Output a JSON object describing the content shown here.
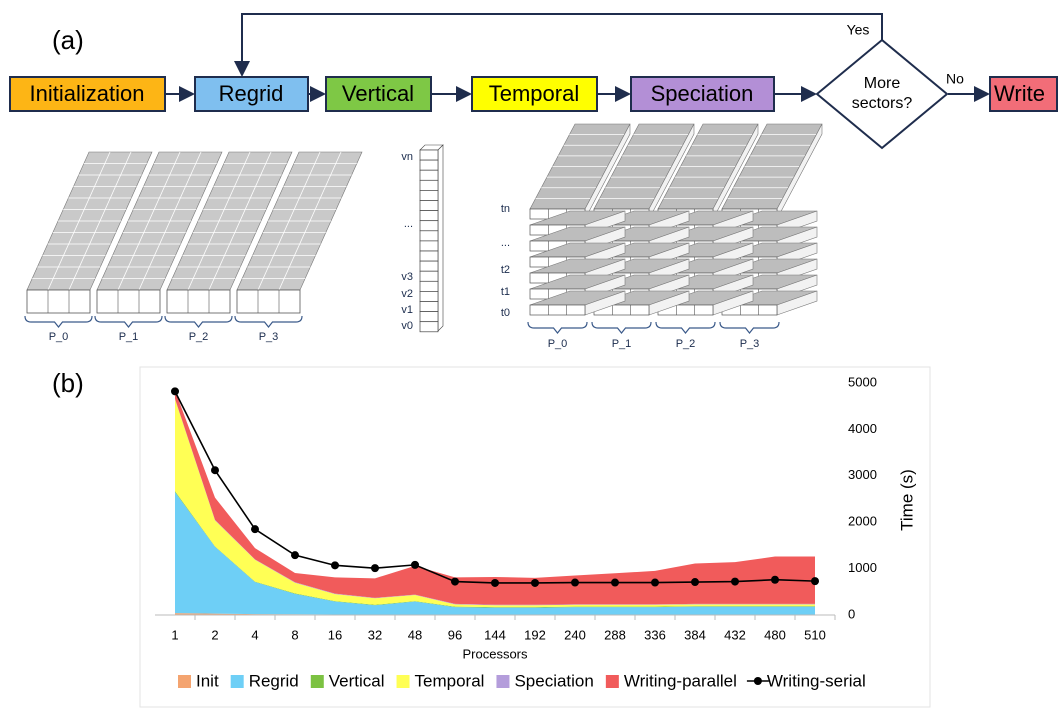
{
  "panel_a": {
    "label": "(a)",
    "flowchart": {
      "nodes": [
        "Initialization",
        "Regrid",
        "Vertical",
        "Temporal",
        "Speciation"
      ],
      "decision_lines": [
        "More",
        "sectors?"
      ],
      "yes": "Yes",
      "no": "No",
      "end": "Write"
    },
    "regrid_partitions": [
      "P_0",
      "P_1",
      "P_2",
      "P_3"
    ],
    "vertical_levels": [
      "vn",
      "...",
      "v3",
      "v2",
      "v1",
      "v0"
    ],
    "temporal_steps": [
      "tn",
      "...",
      "t2",
      "t1",
      "t0"
    ],
    "temporal_partitions": [
      "P_0",
      "P_1",
      "P_2",
      "P_3"
    ]
  },
  "panel_b": {
    "label": "(b)"
  },
  "chart_data": {
    "type": "area",
    "xlabel": "Processors",
    "ylabel": "Time (s)",
    "categories": [
      1,
      2,
      4,
      8,
      16,
      32,
      48,
      96,
      144,
      192,
      240,
      288,
      336,
      384,
      432,
      480,
      510
    ],
    "ylim": [
      0,
      5000
    ],
    "yticks": [
      0,
      1000,
      2000,
      3000,
      4000,
      5000
    ],
    "grid": false,
    "legend": "bottom",
    "series": [
      {
        "name": "Init",
        "color": "#f4a470",
        "values": [
          40,
          30,
          20,
          15,
          10,
          10,
          10,
          10,
          10,
          10,
          10,
          10,
          10,
          10,
          10,
          10,
          10
        ]
      },
      {
        "name": "Regrid",
        "color": "#6ecff6",
        "values": [
          2610,
          1440,
          690,
          440,
          280,
          200,
          280,
          160,
          150,
          150,
          160,
          160,
          160,
          170,
          170,
          170,
          170
        ]
      },
      {
        "name": "Vertical",
        "color": "#7cc242",
        "values": [
          20,
          10,
          10,
          10,
          10,
          10,
          10,
          10,
          10,
          10,
          10,
          10,
          10,
          10,
          10,
          10,
          10
        ]
      },
      {
        "name": "Temporal",
        "color": "#ffff55",
        "values": [
          1980,
          560,
          470,
          230,
          150,
          140,
          130,
          50,
          40,
          40,
          40,
          40,
          40,
          40,
          40,
          40,
          40
        ]
      },
      {
        "name": "Speciation",
        "color": "#b49ddb",
        "values": [
          10,
          10,
          10,
          10,
          10,
          10,
          10,
          10,
          10,
          10,
          10,
          10,
          10,
          10,
          10,
          10,
          10
        ]
      },
      {
        "name": "Writing-parallel",
        "color": "#f15b5b",
        "values": [
          180,
          480,
          240,
          200,
          350,
          420,
          620,
          570,
          600,
          580,
          620,
          670,
          720,
          870,
          900,
          1020,
          1020
        ]
      },
      {
        "name": "Writing-serial",
        "color": "#000000",
        "type": "line",
        "values": [
          4820,
          3120,
          1850,
          1290,
          1070,
          1010,
          1080,
          720,
          690,
          690,
          700,
          700,
          700,
          710,
          720,
          760,
          730
        ]
      }
    ]
  }
}
